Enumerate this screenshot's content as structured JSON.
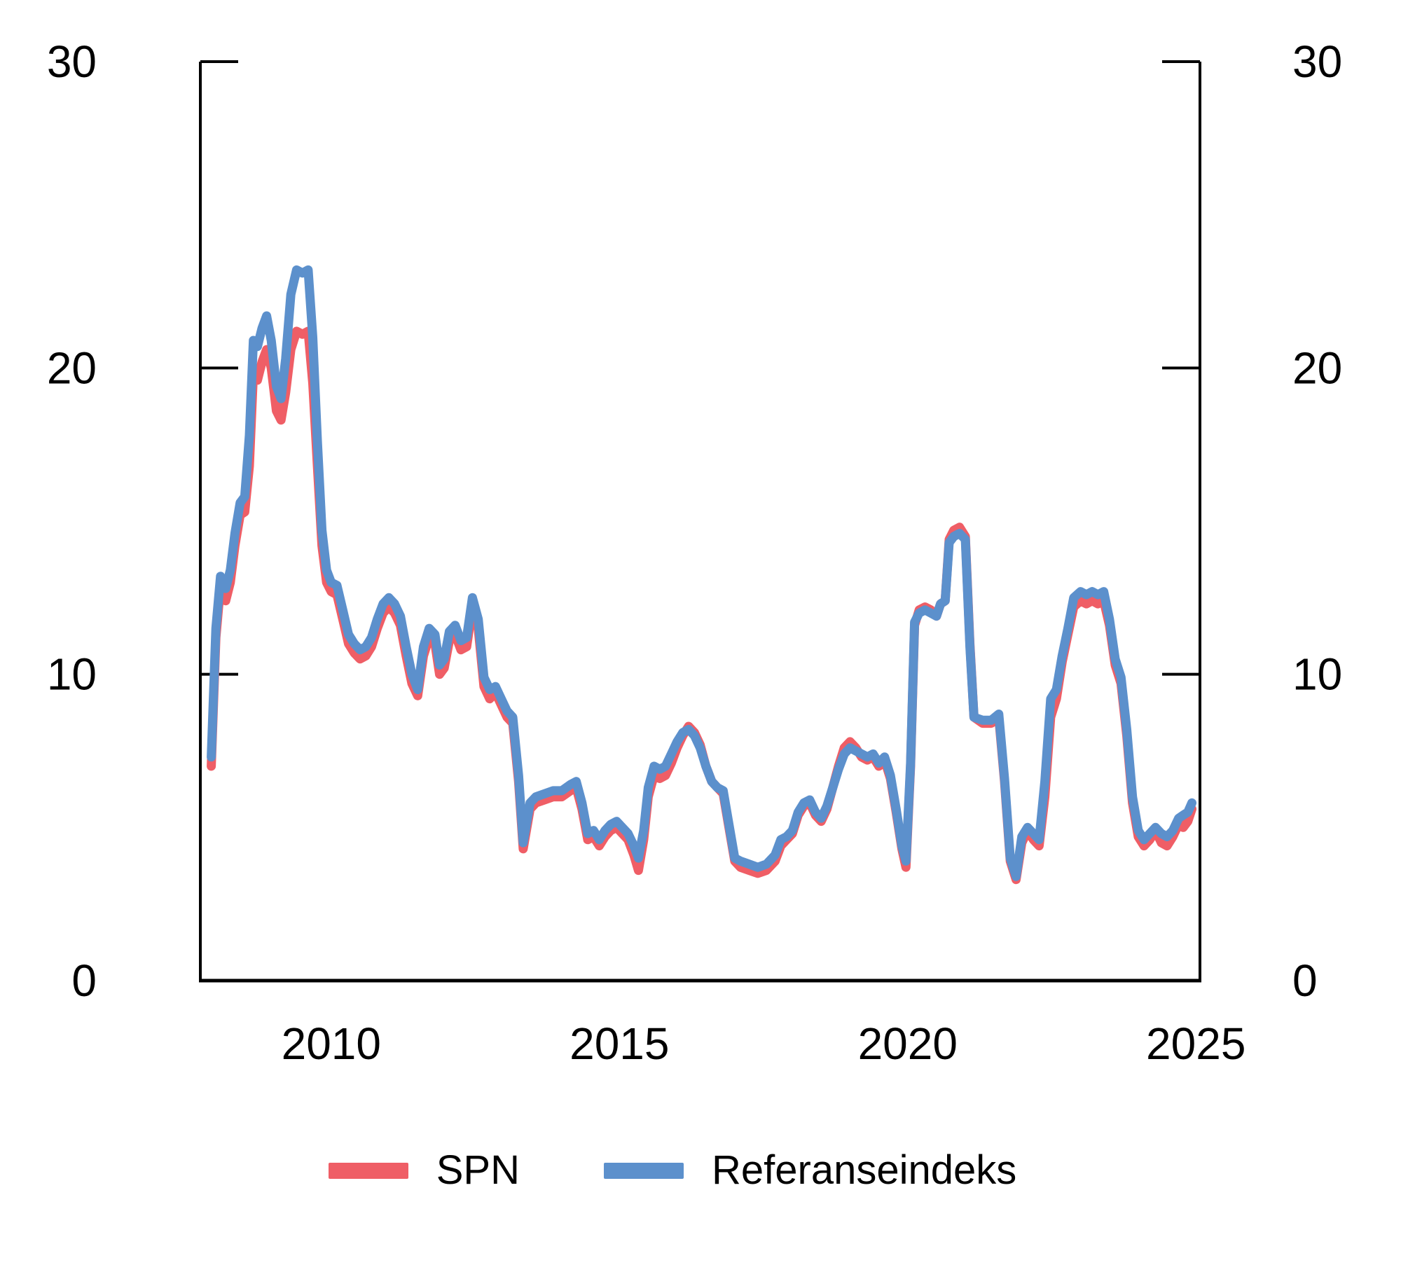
{
  "figure": {
    "background": "#ffffff",
    "axis_color": "#000000",
    "tick_label_fontsize": 64,
    "y_tick_labels": [
      "0",
      "10",
      "20",
      "30"
    ],
    "x_tick_labels": [
      "2010",
      "2015",
      "2020",
      "2025"
    ]
  },
  "legend": {
    "items": [
      {
        "label": "SPN",
        "color": "#ef5e66"
      },
      {
        "label": "Referanseindeks",
        "color": "#5c90cc"
      }
    ]
  },
  "chart_data": {
    "type": "line",
    "title": "",
    "xlabel": "",
    "ylabel": "",
    "grid": false,
    "legend_position": "bottom",
    "xlim": [
      2007.73,
      2025.07
    ],
    "ylim": [
      0,
      30
    ],
    "x_ticks": [
      2010,
      2015,
      2020,
      2025
    ],
    "y_ticks": [
      0,
      10,
      20,
      30
    ],
    "y_ticks_both_sides": true,
    "x": [
      2007.92,
      2008.0,
      2008.08,
      2008.17,
      2008.25,
      2008.33,
      2008.42,
      2008.5,
      2008.58,
      2008.65,
      2008.72,
      2008.8,
      2008.88,
      2008.96,
      2009.05,
      2009.13,
      2009.21,
      2009.3,
      2009.4,
      2009.5,
      2009.6,
      2009.68,
      2009.76,
      2009.84,
      2009.92,
      2010.0,
      2010.1,
      2010.2,
      2010.3,
      2010.4,
      2010.5,
      2010.6,
      2010.7,
      2010.8,
      2010.9,
      2011.0,
      2011.1,
      2011.2,
      2011.3,
      2011.4,
      2011.5,
      2011.6,
      2011.7,
      2011.8,
      2011.88,
      2011.96,
      2012.05,
      2012.15,
      2012.25,
      2012.35,
      2012.45,
      2012.55,
      2012.65,
      2012.75,
      2012.85,
      2012.95,
      2013.05,
      2013.15,
      2013.25,
      2013.33,
      2013.45,
      2013.55,
      2013.7,
      2013.85,
      2014.0,
      2014.15,
      2014.25,
      2014.35,
      2014.45,
      2014.55,
      2014.65,
      2014.75,
      2014.85,
      2014.95,
      2015.05,
      2015.15,
      2015.25,
      2015.33,
      2015.42,
      2015.5,
      2015.6,
      2015.7,
      2015.8,
      2015.9,
      2016.0,
      2016.1,
      2016.2,
      2016.3,
      2016.4,
      2016.5,
      2016.6,
      2016.7,
      2016.8,
      2016.9,
      2017.0,
      2017.1,
      2017.25,
      2017.4,
      2017.55,
      2017.7,
      2017.8,
      2017.9,
      2018.0,
      2018.1,
      2018.2,
      2018.3,
      2018.4,
      2018.5,
      2018.6,
      2018.7,
      2018.8,
      2018.9,
      2019.0,
      2019.1,
      2019.2,
      2019.3,
      2019.4,
      2019.5,
      2019.6,
      2019.7,
      2019.8,
      2019.9,
      2019.97,
      2020.05,
      2020.12,
      2020.2,
      2020.3,
      2020.4,
      2020.5,
      2020.57,
      2020.65,
      2020.72,
      2020.8,
      2020.9,
      2021.0,
      2021.08,
      2021.15,
      2021.3,
      2021.45,
      2021.58,
      2021.68,
      2021.78,
      2021.88,
      2021.98,
      2022.08,
      2022.18,
      2022.28,
      2022.38,
      2022.48,
      2022.58,
      2022.68,
      2022.78,
      2022.88,
      2023.0,
      2023.1,
      2023.2,
      2023.3,
      2023.4,
      2023.5,
      2023.6,
      2023.7,
      2023.8,
      2023.9,
      2024.0,
      2024.1,
      2024.2,
      2024.3,
      2024.4,
      2024.5,
      2024.6,
      2024.7,
      2024.78,
      2024.86,
      2024.93
    ],
    "series": [
      {
        "name": "SPN",
        "color": "#ef5e66",
        "values": [
          7.0,
          11.2,
          12.9,
          12.4,
          13.0,
          14.2,
          15.2,
          15.3,
          16.8,
          19.8,
          19.6,
          20.2,
          20.6,
          20.0,
          18.6,
          18.3,
          19.2,
          20.6,
          21.2,
          21.1,
          21.2,
          19.5,
          16.8,
          14.2,
          13.0,
          12.7,
          12.6,
          11.8,
          11.0,
          10.7,
          10.5,
          10.6,
          10.9,
          11.5,
          12.0,
          12.2,
          12.0,
          11.6,
          10.6,
          9.7,
          9.3,
          10.6,
          11.2,
          11.0,
          10.0,
          10.2,
          11.1,
          11.3,
          10.8,
          10.9,
          12.2,
          11.5,
          9.6,
          9.2,
          9.4,
          9.0,
          8.6,
          8.4,
          6.5,
          4.3,
          5.6,
          5.8,
          5.9,
          6.0,
          6.0,
          6.2,
          6.3,
          5.6,
          4.6,
          4.7,
          4.4,
          4.7,
          4.9,
          5.0,
          4.8,
          4.6,
          4.1,
          3.6,
          4.6,
          6.0,
          6.7,
          6.6,
          6.7,
          7.1,
          7.6,
          8.0,
          8.3,
          8.1,
          7.7,
          7.0,
          6.5,
          6.3,
          6.1,
          5.0,
          3.9,
          3.7,
          3.6,
          3.5,
          3.6,
          3.9,
          4.4,
          4.6,
          4.8,
          5.4,
          5.7,
          5.8,
          5.4,
          5.2,
          5.6,
          6.3,
          7.0,
          7.6,
          7.8,
          7.6,
          7.3,
          7.2,
          7.3,
          7.0,
          7.2,
          6.6,
          5.5,
          4.3,
          3.7,
          7.0,
          11.6,
          12.1,
          12.2,
          12.1,
          11.9,
          12.3,
          12.4,
          14.4,
          14.7,
          14.8,
          14.5,
          11.0,
          8.6,
          8.4,
          8.4,
          8.6,
          6.5,
          3.9,
          3.3,
          4.5,
          4.9,
          4.6,
          4.4,
          6.0,
          8.6,
          9.2,
          10.4,
          11.3,
          12.2,
          12.4,
          12.3,
          12.4,
          12.3,
          12.4,
          11.6,
          10.3,
          9.7,
          8.0,
          5.8,
          4.7,
          4.4,
          4.6,
          4.9,
          4.5,
          4.4,
          4.7,
          5.1,
          5.0,
          5.2,
          5.6
        ]
      },
      {
        "name": "Referanseindeks",
        "color": "#5c90cc",
        "values": [
          7.3,
          11.5,
          13.2,
          12.8,
          13.4,
          14.6,
          15.6,
          15.8,
          17.8,
          20.9,
          20.7,
          21.3,
          21.7,
          20.9,
          19.4,
          19.0,
          20.3,
          22.4,
          23.2,
          23.1,
          23.2,
          21.0,
          17.6,
          14.7,
          13.4,
          13.0,
          12.9,
          12.1,
          11.3,
          11.0,
          10.8,
          10.9,
          11.2,
          11.8,
          12.3,
          12.5,
          12.3,
          11.9,
          10.9,
          10.0,
          9.5,
          10.9,
          11.5,
          11.3,
          10.3,
          10.5,
          11.4,
          11.6,
          11.1,
          11.2,
          12.5,
          11.8,
          9.9,
          9.5,
          9.6,
          9.2,
          8.8,
          8.6,
          6.7,
          4.5,
          5.8,
          6.0,
          6.1,
          6.2,
          6.2,
          6.4,
          6.5,
          5.8,
          4.8,
          4.9,
          4.6,
          4.9,
          5.1,
          5.2,
          5.0,
          4.8,
          4.4,
          4.0,
          4.9,
          6.3,
          7.0,
          6.9,
          7.0,
          7.4,
          7.8,
          8.1,
          8.2,
          8.0,
          7.6,
          7.0,
          6.5,
          6.3,
          6.2,
          5.1,
          4.0,
          3.9,
          3.8,
          3.7,
          3.8,
          4.1,
          4.6,
          4.7,
          4.9,
          5.5,
          5.8,
          5.9,
          5.5,
          5.3,
          5.7,
          6.3,
          6.9,
          7.4,
          7.6,
          7.5,
          7.4,
          7.3,
          7.4,
          7.1,
          7.3,
          6.7,
          5.6,
          4.4,
          3.9,
          7.1,
          11.7,
          12.0,
          12.1,
          12.0,
          11.9,
          12.3,
          12.4,
          14.3,
          14.5,
          14.6,
          14.4,
          10.9,
          8.6,
          8.5,
          8.5,
          8.7,
          6.6,
          4.0,
          3.4,
          4.7,
          5.0,
          4.8,
          4.6,
          6.5,
          9.2,
          9.5,
          10.6,
          11.5,
          12.5,
          12.7,
          12.6,
          12.7,
          12.6,
          12.7,
          11.8,
          10.5,
          9.9,
          8.2,
          6.0,
          4.9,
          4.6,
          4.8,
          5.0,
          4.8,
          4.7,
          4.9,
          5.3,
          5.4,
          5.5,
          5.8
        ]
      }
    ]
  }
}
